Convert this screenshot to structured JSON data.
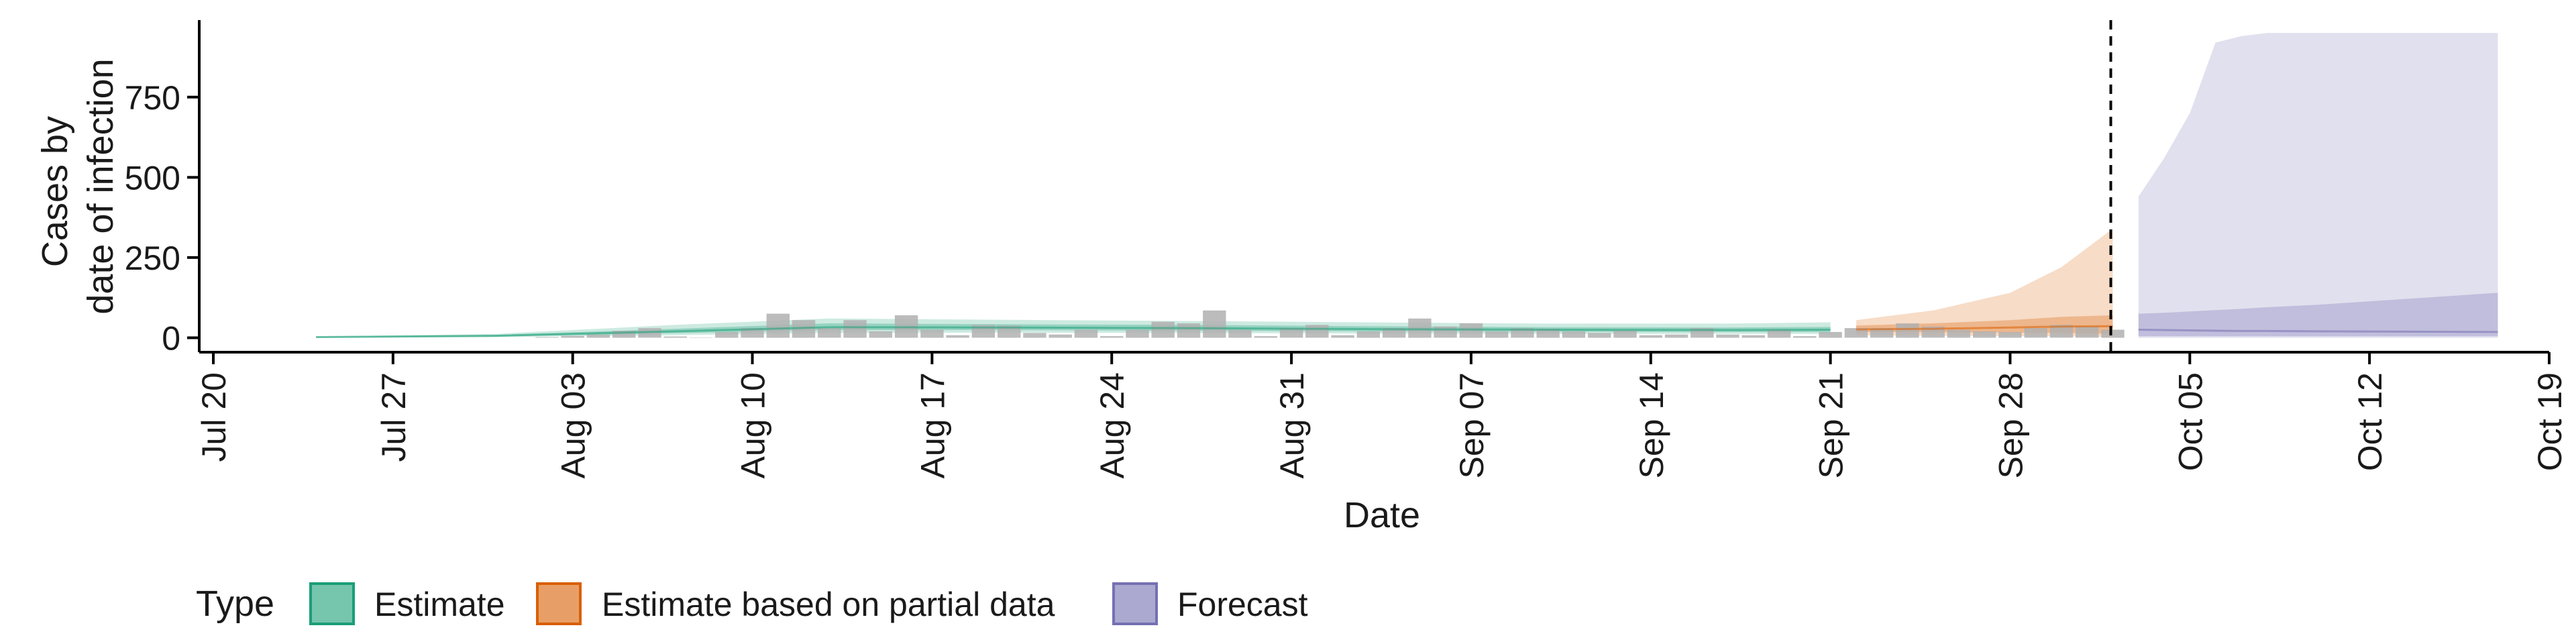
{
  "chart_data": {
    "type": "area",
    "xlabel": "Date",
    "ylabel_lines": [
      "Cases by",
      "date of infection"
    ],
    "x_tick_labels": [
      "Jul 20",
      "Jul 27",
      "Aug 03",
      "Aug 10",
      "Aug 17",
      "Aug 24",
      "Aug 31",
      "Sep 07",
      "Sep 14",
      "Sep 21",
      "Sep 28",
      "Oct 05",
      "Oct 12",
      "Oct 19"
    ],
    "x_ticks": [
      "2020-07-20",
      "2020-07-27",
      "2020-08-03",
      "2020-08-10",
      "2020-08-17",
      "2020-08-24",
      "2020-08-31",
      "2020-09-07",
      "2020-09-14",
      "2020-09-21",
      "2020-09-28",
      "2020-10-05",
      "2020-10-12",
      "2020-10-19"
    ],
    "x_range": [
      "2020-07-20",
      "2020-10-19"
    ],
    "y_ticks": [
      0,
      250,
      500,
      750
    ],
    "y_range": [
      -45,
      990
    ],
    "legend": {
      "title": "Type",
      "position": "bottom",
      "entries": [
        {
          "label": "Estimate",
          "fill": "#1b9e77"
        },
        {
          "label": "Estimate based on partial data",
          "fill": "#d95f02"
        },
        {
          "label": "Forecast",
          "fill": "#7570b3"
        }
      ]
    },
    "forecast_start": "2020-10-02",
    "observed_cases": {
      "color": "#b0b0b0",
      "x": [
        "2020-08-02",
        "2020-08-03",
        "2020-08-04",
        "2020-08-05",
        "2020-08-06",
        "2020-08-07",
        "2020-08-08",
        "2020-08-09",
        "2020-08-10",
        "2020-08-11",
        "2020-08-12",
        "2020-08-13",
        "2020-08-14",
        "2020-08-15",
        "2020-08-16",
        "2020-08-17",
        "2020-08-18",
        "2020-08-19",
        "2020-08-20",
        "2020-08-21",
        "2020-08-22",
        "2020-08-23",
        "2020-08-24",
        "2020-08-25",
        "2020-08-26",
        "2020-08-27",
        "2020-08-28",
        "2020-08-29",
        "2020-08-30",
        "2020-08-31",
        "2020-09-01",
        "2020-09-02",
        "2020-09-03",
        "2020-09-04",
        "2020-09-05",
        "2020-09-06",
        "2020-09-07",
        "2020-09-08",
        "2020-09-09",
        "2020-09-10",
        "2020-09-11",
        "2020-09-12",
        "2020-09-13",
        "2020-09-14",
        "2020-09-15",
        "2020-09-16",
        "2020-09-17",
        "2020-09-18",
        "2020-09-19",
        "2020-09-20",
        "2020-09-21",
        "2020-09-22",
        "2020-09-23",
        "2020-09-24",
        "2020-09-25",
        "2020-09-26",
        "2020-09-27",
        "2020-09-28",
        "2020-09-29",
        "2020-09-30",
        "2020-10-01",
        "2020-10-02"
      ],
      "values": [
        2,
        6,
        10,
        22,
        30,
        4,
        0,
        18,
        30,
        75,
        55,
        30,
        55,
        20,
        70,
        25,
        8,
        40,
        38,
        15,
        10,
        25,
        5,
        25,
        50,
        45,
        85,
        25,
        5,
        30,
        40,
        8,
        20,
        30,
        60,
        35,
        45,
        20,
        30,
        28,
        20,
        15,
        22,
        8,
        10,
        30,
        10,
        8,
        25,
        5,
        18,
        30,
        30,
        45,
        35,
        25,
        20,
        18,
        30,
        40,
        35,
        25
      ]
    },
    "series": [
      {
        "name": "Estimate",
        "x": [
          "2020-07-24",
          "2020-07-31",
          "2020-08-07",
          "2020-08-13",
          "2020-08-20",
          "2020-08-27",
          "2020-09-03",
          "2020-09-10",
          "2020-09-17",
          "2020-09-21"
        ],
        "median": [
          2,
          6,
          20,
          33,
          32,
          30,
          27,
          25,
          24,
          25
        ],
        "lower_90": [
          0,
          2,
          8,
          15,
          16,
          15,
          13,
          12,
          12,
          12
        ],
        "upper_90": [
          4,
          12,
          40,
          60,
          56,
          52,
          48,
          44,
          44,
          48
        ],
        "lower_50": [
          1,
          4,
          14,
          24,
          24,
          22,
          20,
          19,
          18,
          18
        ],
        "upper_50": [
          3,
          9,
          28,
          45,
          42,
          40,
          36,
          33,
          32,
          34
        ]
      },
      {
        "name": "Estimate based on partial data",
        "x": [
          "2020-09-22",
          "2020-09-25",
          "2020-09-28",
          "2020-09-30",
          "2020-10-02"
        ],
        "median": [
          26,
          28,
          32,
          35,
          36
        ],
        "lower_90": [
          8,
          6,
          5,
          4,
          2
        ],
        "upper_90": [
          55,
          85,
          140,
          220,
          340
        ],
        "lower_50": [
          18,
          17,
          16,
          15,
          12
        ],
        "upper_50": [
          38,
          45,
          55,
          65,
          70
        ]
      },
      {
        "name": "Forecast",
        "x": [
          "2020-10-03",
          "2020-10-04",
          "2020-10-05",
          "2020-10-06",
          "2020-10-07",
          "2020-10-08",
          "2020-10-10",
          "2020-10-17"
        ],
        "median": [
          25,
          24,
          23,
          22,
          21,
          21,
          20,
          18
        ],
        "lower_90": [
          0,
          0,
          0,
          0,
          0,
          0,
          0,
          0
        ],
        "upper_90": [
          440,
          560,
          700,
          920,
          940,
          950,
          950,
          950
        ],
        "lower_50": [
          5,
          5,
          5,
          5,
          5,
          5,
          5,
          5
        ],
        "upper_50": [
          75,
          78,
          82,
          86,
          90,
          95,
          103,
          140
        ]
      }
    ]
  }
}
